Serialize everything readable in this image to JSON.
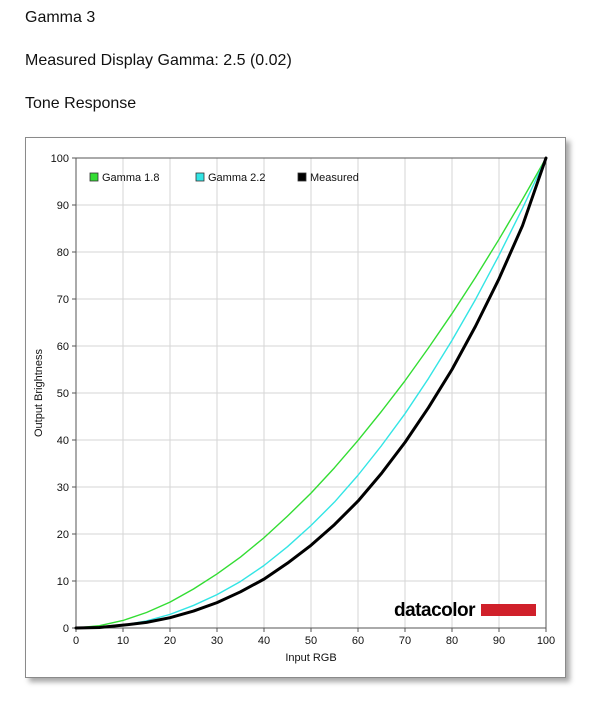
{
  "page": {
    "heading_gamma": "Gamma 3",
    "heading_measured": "Measured Display Gamma: 2.5 (0.02)",
    "heading_tone": "Tone Response"
  },
  "chart_data": {
    "type": "line",
    "xlabel": "Input RGB",
    "ylabel": "Output Brightness",
    "xlim": [
      0,
      100
    ],
    "ylim": [
      0,
      100
    ],
    "x_ticks": [
      0,
      10,
      20,
      30,
      40,
      50,
      60,
      70,
      80,
      90,
      100
    ],
    "y_ticks": [
      0,
      10,
      20,
      30,
      40,
      50,
      60,
      70,
      80,
      90,
      100
    ],
    "grid": true,
    "legend_position": "top-left",
    "series": [
      {
        "name": "Gamma 1.8",
        "color": "#33dd33",
        "x": [
          0,
          5,
          10,
          15,
          20,
          25,
          30,
          35,
          40,
          45,
          50,
          55,
          60,
          65,
          70,
          75,
          80,
          85,
          90,
          95,
          100
        ],
        "values": [
          0,
          0.5,
          1.6,
          3.3,
          5.5,
          8.3,
          11.5,
          15.1,
          19.2,
          23.8,
          28.7,
          34.1,
          39.9,
          46.1,
          52.6,
          59.6,
          66.9,
          74.6,
          82.7,
          91.2,
          100
        ]
      },
      {
        "name": "Gamma 2.2",
        "color": "#33e5e5",
        "x": [
          0,
          5,
          10,
          15,
          20,
          25,
          30,
          35,
          40,
          45,
          50,
          55,
          60,
          65,
          70,
          75,
          80,
          85,
          90,
          95,
          100
        ],
        "values": [
          0,
          0.1,
          0.6,
          1.5,
          2.9,
          4.8,
          7.1,
          9.9,
          13.3,
          17.3,
          21.8,
          26.8,
          32.5,
          38.8,
          45.6,
          53.1,
          61.2,
          69.9,
          79.3,
          89.3,
          100
        ]
      },
      {
        "name": "Measured",
        "color": "#000000",
        "x": [
          0,
          5,
          10,
          15,
          20,
          25,
          30,
          35,
          40,
          45,
          50,
          55,
          60,
          65,
          70,
          75,
          80,
          85,
          90,
          95,
          100
        ],
        "values": [
          0,
          0.1,
          0.6,
          1.2,
          2.2,
          3.6,
          5.4,
          7.7,
          10.4,
          13.8,
          17.6,
          22.0,
          27.0,
          32.9,
          39.5,
          46.9,
          55.0,
          64.2,
          74.3,
          85.6,
          100
        ]
      }
    ]
  },
  "brand": {
    "logo_text": "datacolor",
    "logo_bar_color": "#d0202a"
  }
}
